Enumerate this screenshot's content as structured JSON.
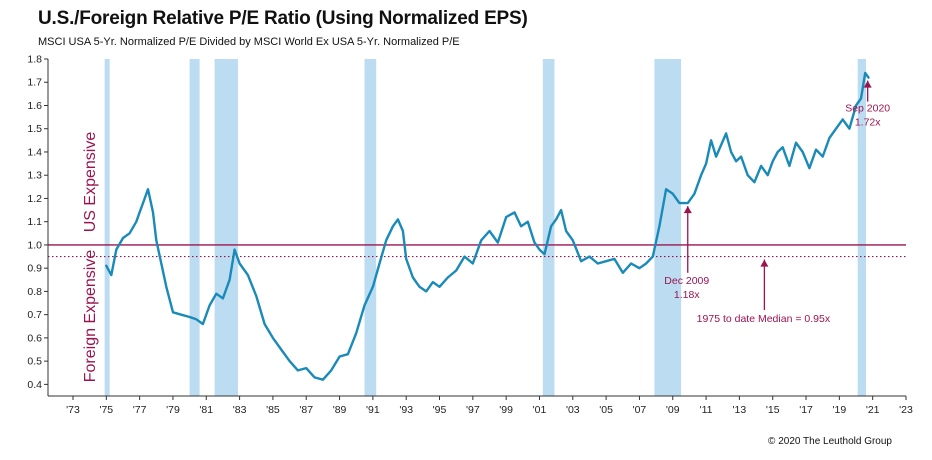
{
  "title": "U.S./Foreign Relative P/E Ratio (Using Normalized EPS)",
  "subtitle": "MSCI USA 5-Yr. Normalized P/E Divided by MSCI World Ex USA 5-Yr. Normalized P/E",
  "credit": "© 2020 The Leuthold Group",
  "labels": {
    "us_expensive": "US Expensive",
    "foreign_expensive": "Foreign Expensive"
  },
  "colors": {
    "line": "#1a8ab8",
    "recession": "#bcdcf2",
    "reference": "#9b1450",
    "annotation": "#9b1450"
  },
  "chart_data": {
    "type": "line",
    "title": "U.S./Foreign Relative P/E Ratio (Using Normalized EPS)",
    "subtitle": "MSCI USA 5-Yr. Normalized P/E Divided by MSCI World Ex USA 5-Yr. Normalized P/E",
    "xlabel": "",
    "ylabel": "",
    "xlim": [
      1971.5,
      2023
    ],
    "ylim": [
      0.35,
      1.8
    ],
    "grid": false,
    "y_ticks": [
      "0.4",
      "0.5",
      "0.6",
      "0.7",
      "0.8",
      "0.9",
      "1.0",
      "1.1",
      "1.2",
      "1.3",
      "1.4",
      "1.5",
      "1.6",
      "1.7",
      "1.8"
    ],
    "x_ticks": [
      "'73",
      "'75",
      "'77",
      "'79",
      "'81",
      "'83",
      "'85",
      "'87",
      "'89",
      "'91",
      "'93",
      "'95",
      "'97",
      "'99",
      "'01",
      "'03",
      "'05",
      "'07",
      "'09",
      "'11",
      "'13",
      "'15",
      "'17",
      "'19",
      "'21",
      "'23"
    ],
    "reference_lines": [
      {
        "y": 1.0,
        "style": "solid"
      },
      {
        "y": 0.95,
        "style": "dotted"
      }
    ],
    "recessions": [
      [
        1974.9,
        1975.2
      ],
      [
        1980.0,
        1980.6
      ],
      [
        1981.5,
        1982.9
      ],
      [
        1990.5,
        1991.2
      ],
      [
        2001.2,
        2001.9
      ],
      [
        2007.9,
        2009.5
      ],
      [
        2020.1,
        2020.6
      ]
    ],
    "annotations": [
      {
        "lines": [
          "Sep 2020",
          "1.72x"
        ],
        "x": 2020.7,
        "y": 1.72
      },
      {
        "lines": [
          "Dec 2009",
          "1.18x"
        ],
        "x": 2009.9,
        "y": 1.18
      },
      {
        "lines": [
          "1975 to date Median = 0.95x"
        ],
        "x": 2014.5,
        "y": 0.95
      }
    ],
    "series": [
      {
        "x": [
          1975.0,
          1975.3,
          1975.6,
          1976.0,
          1976.4,
          1976.8,
          1977.0,
          1977.2,
          1977.5,
          1977.8,
          1978.0,
          1978.3,
          1978.6,
          1979.0,
          1979.5,
          1980.0,
          1980.4,
          1980.8,
          1981.2,
          1981.6,
          1982.0,
          1982.4,
          1982.7,
          1983.0,
          1983.5,
          1984.0,
          1984.5,
          1985.0,
          1985.5,
          1986.0,
          1986.5,
          1987.0,
          1987.5,
          1988.0,
          1988.5,
          1989.0,
          1989.5,
          1990.0,
          1990.5,
          1991.0,
          1991.4,
          1991.8,
          1992.2,
          1992.5,
          1992.8,
          1993.0,
          1993.4,
          1993.8,
          1994.2,
          1994.6,
          1995.0,
          1995.5,
          1996.0,
          1996.5,
          1997.0,
          1997.5,
          1998.0,
          1998.5,
          1999.0,
          1999.5,
          1999.9,
          2000.3,
          2000.7,
          2001.0,
          2001.3,
          2001.7,
          2002.0,
          2002.3,
          2002.6,
          2003.0,
          2003.5,
          2004.0,
          2004.5,
          2005.0,
          2005.5,
          2006.0,
          2006.5,
          2007.0,
          2007.4,
          2007.8,
          2008.2,
          2008.6,
          2009.0,
          2009.4,
          2009.9,
          2010.3,
          2010.7,
          2011.0,
          2011.3,
          2011.6,
          2011.9,
          2012.2,
          2012.5,
          2012.8,
          2013.1,
          2013.5,
          2013.9,
          2014.3,
          2014.7,
          2015.0,
          2015.3,
          2015.6,
          2016.0,
          2016.4,
          2016.8,
          2017.2,
          2017.6,
          2018.0,
          2018.4,
          2018.8,
          2019.2,
          2019.6,
          2020.0,
          2020.3,
          2020.55,
          2020.75
        ],
        "values": [
          0.91,
          0.87,
          0.98,
          1.03,
          1.05,
          1.1,
          1.14,
          1.18,
          1.24,
          1.14,
          1.02,
          0.92,
          0.82,
          0.71,
          0.7,
          0.69,
          0.68,
          0.66,
          0.74,
          0.79,
          0.77,
          0.85,
          0.98,
          0.92,
          0.87,
          0.78,
          0.66,
          0.6,
          0.55,
          0.5,
          0.46,
          0.47,
          0.43,
          0.42,
          0.46,
          0.52,
          0.53,
          0.62,
          0.74,
          0.82,
          0.92,
          1.02,
          1.08,
          1.11,
          1.06,
          0.94,
          0.86,
          0.82,
          0.8,
          0.84,
          0.82,
          0.86,
          0.89,
          0.95,
          0.92,
          1.02,
          1.06,
          1.01,
          1.12,
          1.14,
          1.08,
          1.1,
          1.01,
          0.98,
          0.96,
          1.08,
          1.11,
          1.15,
          1.06,
          1.02,
          0.93,
          0.95,
          0.92,
          0.93,
          0.94,
          0.88,
          0.92,
          0.9,
          0.92,
          0.95,
          1.08,
          1.24,
          1.22,
          1.18,
          1.18,
          1.22,
          1.3,
          1.35,
          1.45,
          1.38,
          1.43,
          1.48,
          1.4,
          1.36,
          1.38,
          1.3,
          1.27,
          1.34,
          1.3,
          1.36,
          1.4,
          1.42,
          1.34,
          1.44,
          1.4,
          1.33,
          1.41,
          1.38,
          1.46,
          1.5,
          1.54,
          1.5,
          1.6,
          1.63,
          1.74,
          1.72
        ]
      }
    ]
  }
}
